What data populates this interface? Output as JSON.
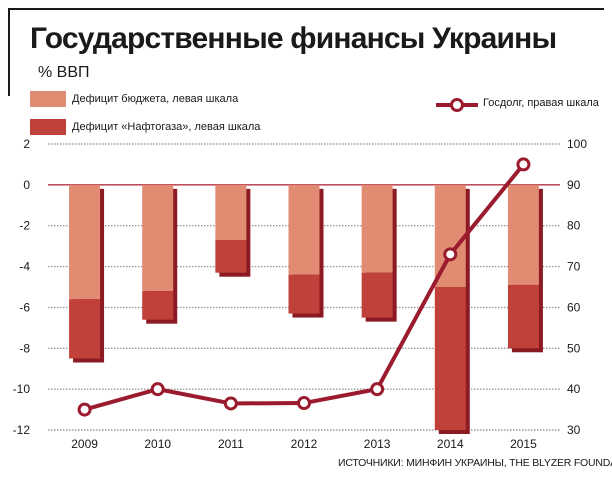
{
  "title": "Государственные финансы Украины",
  "unit_label": "% ВВП",
  "legend": {
    "budget": "Дефицит бюджета, левая шкала",
    "naftogaz": "Дефицит «Нафтогаза», левая шкала",
    "debt": "Госдолг, правая шкала"
  },
  "source": "ИСТОЧНИКИ: МИНФИН УКРАИНЫ, THE BLYZER FOUNDATION",
  "colors": {
    "budget": "#e08b72",
    "naftogaz": "#c0403a",
    "debt": "#9b1b2e",
    "grid": "#999999",
    "zero_line": "#c05060"
  },
  "chart_data": {
    "type": "bar",
    "categories": [
      "2009",
      "2010",
      "2011",
      "2012",
      "2013",
      "2014",
      "2015"
    ],
    "series": [
      {
        "name": "Дефицит бюджета, левая шкала",
        "axis": "left",
        "type": "bar",
        "stack": "deficit",
        "values": [
          -5.6,
          -5.2,
          -2.7,
          -4.4,
          -4.3,
          -5.0,
          -4.9
        ]
      },
      {
        "name": "Дефицит «Нафтогаза», левая шкала",
        "axis": "left",
        "type": "bar",
        "stack": "deficit",
        "values": [
          -2.9,
          -1.4,
          -1.6,
          -1.9,
          -2.2,
          -7.0,
          -3.1
        ]
      },
      {
        "name": "Госдолг, правая шкала",
        "axis": "right",
        "type": "line",
        "values": [
          35,
          40,
          36.5,
          36.6,
          40,
          73,
          95
        ]
      }
    ],
    "y_left": {
      "range": [
        -12,
        2
      ],
      "ticks": [
        "2",
        "0",
        "-2",
        "-4",
        "-6",
        "-8",
        "-10",
        "-12"
      ]
    },
    "y_right": {
      "range": [
        30,
        100
      ],
      "ticks": [
        "100",
        "90",
        "80",
        "70",
        "60",
        "50",
        "40",
        "30"
      ]
    },
    "grid": true,
    "legend_position": "top"
  }
}
